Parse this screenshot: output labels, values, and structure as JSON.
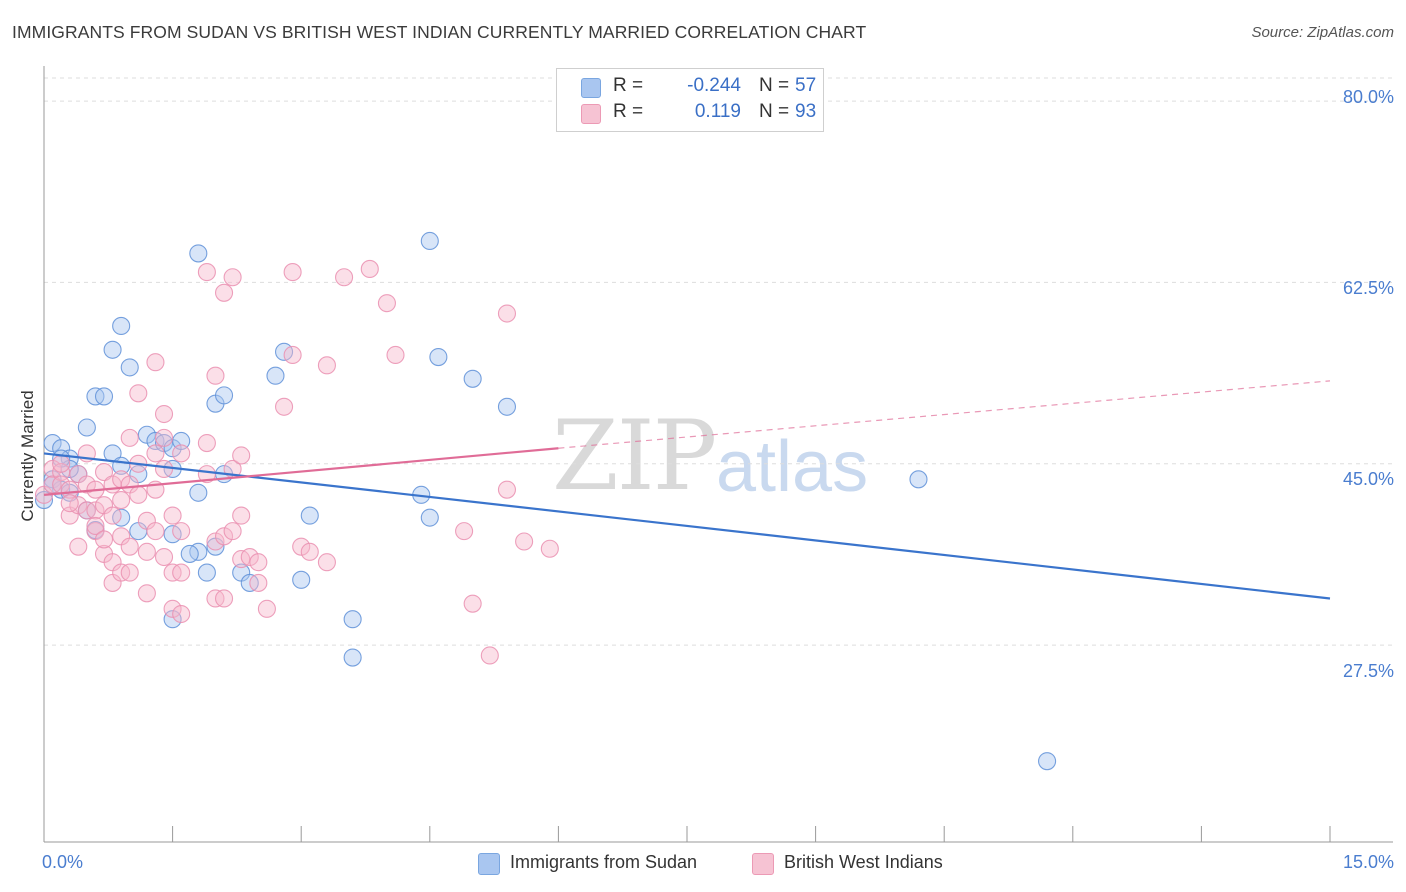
{
  "title": "IMMIGRANTS FROM SUDAN VS BRITISH WEST INDIAN CURRENTLY MARRIED CORRELATION CHART",
  "source": "Source: ZipAtlas.com",
  "watermark": {
    "zip": "ZIP",
    "atlas": "atlas"
  },
  "legend_top": {
    "rows": [
      {
        "r_label": "R =",
        "r_value": "-0.244",
        "n_label": "N =",
        "n_value": "57"
      },
      {
        "r_label": "R =",
        "r_value": "0.119",
        "n_label": "N =",
        "n_value": "93"
      }
    ]
  },
  "legend_bottom": {
    "series1": "Immigrants from Sudan",
    "series2": "British West Indians"
  },
  "colors": {
    "blue_fill": "#a9c6f0",
    "blue_line": "#3a74cc",
    "pink_fill": "#f6b7cb",
    "pink_line": "#e06c97",
    "grid": "#dddddd"
  },
  "chart_data": {
    "type": "scatter",
    "title": "IMMIGRANTS FROM SUDAN VS BRITISH WEST INDIAN CURRENTLY MARRIED CORRELATION CHART",
    "xlabel": "",
    "ylabel": "Currently Married",
    "xlim": [
      0,
      15
    ],
    "ylim": [
      8.5,
      83
    ],
    "x_tick_labels": [
      "0.0%",
      "15.0%"
    ],
    "y_ticks": [
      27.5,
      45.0,
      62.5,
      80.0
    ],
    "y_tick_labels": [
      "27.5%",
      "45.0%",
      "62.5%",
      "80.0%"
    ],
    "grid": "horizontal dashed",
    "legend_position": "top-center",
    "series": [
      {
        "name": "Immigrants from Sudan",
        "r": -0.244,
        "n": 57,
        "trend": {
          "x": [
            0,
            15
          ],
          "y": [
            46.0,
            32.0
          ]
        },
        "points": [
          [
            0.1,
            47
          ],
          [
            0.2,
            46.5
          ],
          [
            0.3,
            45.5
          ],
          [
            0.1,
            43.5
          ],
          [
            0.4,
            44
          ],
          [
            0.2,
            42.5
          ],
          [
            0.3,
            42.2
          ],
          [
            0.5,
            48.5
          ],
          [
            0.6,
            51.5
          ],
          [
            0.7,
            51.5
          ],
          [
            0.8,
            56
          ],
          [
            0.9,
            58.3
          ],
          [
            1.0,
            54.3
          ],
          [
            0.8,
            46
          ],
          [
            0.9,
            44.8
          ],
          [
            1.2,
            47.8
          ],
          [
            1.3,
            47.2
          ],
          [
            1.4,
            47
          ],
          [
            1.5,
            46.5
          ],
          [
            1.6,
            47.2
          ],
          [
            1.1,
            44
          ],
          [
            1.5,
            44.5
          ],
          [
            1.8,
            65.3
          ],
          [
            2.0,
            50.8
          ],
          [
            2.1,
            51.6
          ],
          [
            1.8,
            42.2
          ],
          [
            2.1,
            44
          ],
          [
            0.6,
            38.6
          ],
          [
            0.9,
            39.8
          ],
          [
            1.1,
            38.5
          ],
          [
            1.5,
            38.2
          ],
          [
            1.8,
            36.5
          ],
          [
            2.0,
            37
          ],
          [
            1.7,
            36.3
          ],
          [
            2.3,
            34.5
          ],
          [
            1.9,
            34.5
          ],
          [
            2.4,
            33.5
          ],
          [
            1.5,
            30
          ],
          [
            2.7,
            53.5
          ],
          [
            2.8,
            55.8
          ],
          [
            3.1,
            40
          ],
          [
            3.0,
            33.8
          ],
          [
            3.6,
            30
          ],
          [
            3.6,
            26.3
          ],
          [
            4.5,
            66.5
          ],
          [
            4.6,
            55.3
          ],
          [
            5.0,
            53.2
          ],
          [
            5.4,
            50.5
          ],
          [
            4.5,
            39.8
          ],
          [
            4.4,
            42
          ],
          [
            10.2,
            43.5
          ],
          [
            11.7,
            16.3
          ],
          [
            0.1,
            43
          ],
          [
            0.3,
            44.5
          ],
          [
            0.5,
            40.5
          ],
          [
            0.0,
            41.5
          ],
          [
            0.2,
            45.5
          ]
        ]
      },
      {
        "name": "British West Indians",
        "r": 0.119,
        "n": 93,
        "trend": {
          "x": [
            0,
            6
          ],
          "y": [
            42.0,
            46.5
          ]
        },
        "trend_extension": {
          "x": [
            6,
            15
          ],
          "y": [
            46.5,
            53.0
          ]
        },
        "points": [
          [
            0.0,
            42
          ],
          [
            0.1,
            44.5
          ],
          [
            0.1,
            43
          ],
          [
            0.2,
            44.2
          ],
          [
            0.2,
            43
          ],
          [
            0.3,
            42.5
          ],
          [
            0.3,
            40
          ],
          [
            0.4,
            44
          ],
          [
            0.4,
            41
          ],
          [
            0.4,
            37
          ],
          [
            0.5,
            46
          ],
          [
            0.5,
            43
          ],
          [
            0.5,
            40.5
          ],
          [
            0.6,
            42.5
          ],
          [
            0.6,
            40.5
          ],
          [
            0.6,
            38.5
          ],
          [
            0.7,
            44.2
          ],
          [
            0.7,
            41
          ],
          [
            0.7,
            36.3
          ],
          [
            0.8,
            43
          ],
          [
            0.8,
            40
          ],
          [
            0.8,
            35.5
          ],
          [
            0.8,
            33.5
          ],
          [
            0.9,
            43.5
          ],
          [
            0.9,
            41.5
          ],
          [
            0.9,
            38
          ],
          [
            0.9,
            34.5
          ],
          [
            1.0,
            47.5
          ],
          [
            1.0,
            43
          ],
          [
            1.0,
            37
          ],
          [
            1.0,
            34.5
          ],
          [
            1.1,
            51.8
          ],
          [
            1.1,
            45
          ],
          [
            1.1,
            42
          ],
          [
            1.2,
            39.5
          ],
          [
            1.2,
            36.5
          ],
          [
            1.3,
            54.8
          ],
          [
            1.3,
            46
          ],
          [
            1.3,
            42.5
          ],
          [
            1.3,
            38.5
          ],
          [
            1.4,
            49.8
          ],
          [
            1.4,
            47.5
          ],
          [
            1.4,
            44.5
          ],
          [
            1.4,
            36
          ],
          [
            1.5,
            40
          ],
          [
            1.5,
            34.5
          ],
          [
            1.5,
            31
          ],
          [
            1.6,
            46
          ],
          [
            1.6,
            38.5
          ],
          [
            1.6,
            34.5
          ],
          [
            1.6,
            30.5
          ],
          [
            1.9,
            63.5
          ],
          [
            1.9,
            47
          ],
          [
            1.9,
            44
          ],
          [
            2.0,
            53.5
          ],
          [
            2.0,
            37.5
          ],
          [
            2.0,
            32
          ],
          [
            2.1,
            61.5
          ],
          [
            2.1,
            38
          ],
          [
            2.1,
            32
          ],
          [
            2.2,
            63
          ],
          [
            2.2,
            44.5
          ],
          [
            2.2,
            38.5
          ],
          [
            2.3,
            45.8
          ],
          [
            2.3,
            40
          ],
          [
            2.3,
            35.8
          ],
          [
            2.4,
            36
          ],
          [
            2.5,
            33.5
          ],
          [
            2.5,
            35.5
          ],
          [
            2.6,
            31
          ],
          [
            2.8,
            50.5
          ],
          [
            2.9,
            63.5
          ],
          [
            2.9,
            55.5
          ],
          [
            3.0,
            37
          ],
          [
            3.1,
            36.5
          ],
          [
            3.3,
            54.5
          ],
          [
            3.3,
            35.5
          ],
          [
            3.5,
            63
          ],
          [
            3.8,
            63.8
          ],
          [
            4.0,
            60.5
          ],
          [
            4.1,
            55.5
          ],
          [
            4.9,
            38.5
          ],
          [
            5.0,
            31.5
          ],
          [
            5.4,
            59.5
          ],
          [
            5.4,
            42.5
          ],
          [
            5.6,
            37.5
          ],
          [
            5.9,
            36.8
          ],
          [
            5.2,
            26.5
          ],
          [
            0.2,
            45
          ],
          [
            0.3,
            41.2
          ],
          [
            0.6,
            39
          ],
          [
            0.7,
            37.7
          ],
          [
            1.2,
            32.5
          ]
        ]
      }
    ]
  }
}
